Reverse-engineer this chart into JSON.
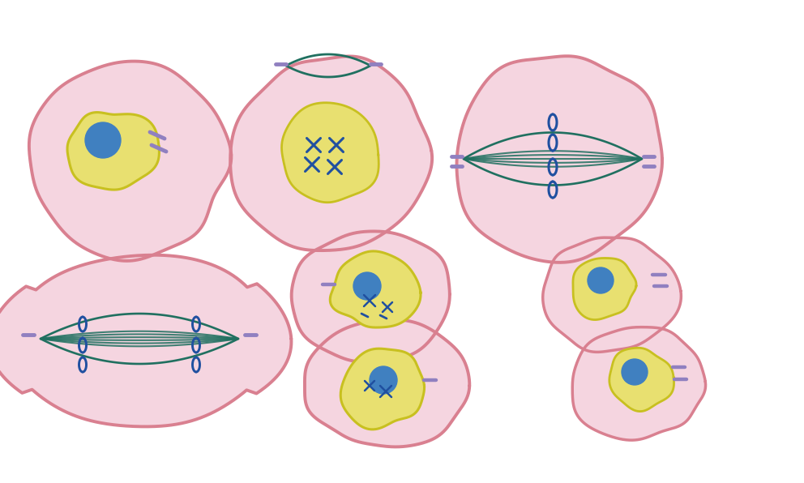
{
  "bg_color": "#ffffff",
  "cell_fill": "#f5d5e0",
  "cell_edge": "#d98090",
  "nucleus_fill": "#e8e070",
  "nucleus_edge": "#c8c020",
  "nucleolus_fill": "#4080c0",
  "chr_color": "#2050a0",
  "spindle_color": "#207060",
  "centriole_color": "#9080c0",
  "figsize": [
    9.92,
    5.96
  ]
}
